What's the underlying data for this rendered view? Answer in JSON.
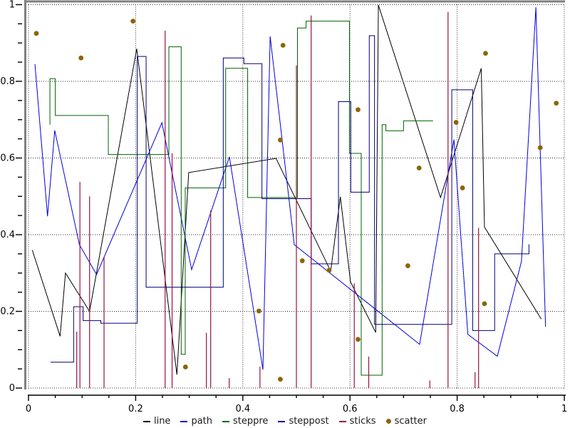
{
  "chart_data": {
    "type": "line",
    "title": "",
    "xlabel": "",
    "ylabel": "",
    "xlim": [
      0,
      1
    ],
    "ylim": [
      0,
      1
    ],
    "grid": "dotted-at-major-ticks",
    "x_ticks": [
      0,
      0.2,
      0.4,
      0.6,
      0.8,
      1
    ],
    "y_ticks": [
      0,
      0.2,
      0.4,
      0.6,
      0.8,
      1
    ],
    "x_tick_labels": [
      "0",
      "0.2",
      "0.4",
      "0.6",
      "0.8",
      "1"
    ],
    "y_tick_labels": [
      "0",
      "0.2",
      "0.4",
      "0.6",
      "0.8",
      "1"
    ],
    "minor_tick_step": 0.05,
    "legend_position": "bottom-center",
    "frame_color": "#808080",
    "grid_color": "#2b2b2b",
    "series": [
      {
        "name": "line",
        "type": "line",
        "color": "#000000",
        "points": [
          [
            0.007,
            0.36
          ],
          [
            0.059,
            0.135
          ],
          [
            0.069,
            0.3
          ],
          [
            0.114,
            0.2
          ],
          [
            0.202,
            0.885
          ],
          [
            0.277,
            0.035
          ],
          [
            0.299,
            0.562
          ],
          [
            0.462,
            0.599
          ],
          [
            0.564,
            0.305
          ],
          [
            0.582,
            0.499
          ],
          [
            0.601,
            0.277
          ],
          [
            0.648,
            0.145
          ],
          [
            0.653,
            0.999
          ],
          [
            0.769,
            0.497
          ],
          [
            0.845,
            0.834
          ],
          [
            0.851,
            0.42
          ],
          [
            0.957,
            0.18
          ]
        ]
      },
      {
        "name": "path",
        "type": "line",
        "color": "#0000e0",
        "points": [
          [
            0.012,
            0.845
          ],
          [
            0.0355,
            0.448
          ],
          [
            0.049,
            0.672
          ],
          [
            0.095,
            0.374
          ],
          [
            0.127,
            0.296
          ],
          [
            0.249,
            0.692
          ],
          [
            0.3045,
            0.309
          ],
          [
            0.375,
            0.603
          ],
          [
            0.4375,
            0.048
          ],
          [
            0.451,
            0.917
          ],
          [
            0.496,
            0.374
          ],
          [
            0.73,
            0.114
          ],
          [
            0.794,
            0.648
          ],
          [
            0.82,
            0.14
          ],
          [
            0.875,
            0.083
          ],
          [
            0.92,
            0.33
          ],
          [
            0.947,
            0.993
          ],
          [
            0.965,
            0.16
          ]
        ]
      },
      {
        "name": "steppre",
        "type": "step-pre",
        "color": "#006400",
        "points": [
          [
            0.04,
            0.687
          ],
          [
            0.05,
            0.807
          ],
          [
            0.149,
            0.711
          ],
          [
            0.262,
            0.609
          ],
          [
            0.285,
            0.89
          ],
          [
            0.2925,
            0.088
          ],
          [
            0.368,
            0.522
          ],
          [
            0.409,
            0.834
          ],
          [
            0.502,
            0.497
          ],
          [
            0.518,
            0.939
          ],
          [
            0.599,
            0.957
          ],
          [
            0.621,
            0.612
          ],
          [
            0.66,
            0.0335
          ],
          [
            0.667,
            0.687
          ],
          [
            0.7,
            0.671
          ],
          [
            0.755,
            0.697
          ]
        ]
      },
      {
        "name": "steppost",
        "type": "step-post",
        "color": "#000080",
        "points": [
          [
            0.041,
            0.0675
          ],
          [
            0.0842,
            0.212
          ],
          [
            0.102,
            0.176
          ],
          [
            0.135,
            0.169
          ],
          [
            0.203,
            0.865
          ],
          [
            0.2195,
            0.263
          ],
          [
            0.3635,
            0.861
          ],
          [
            0.402,
            0.846
          ],
          [
            0.4357,
            0.494
          ],
          [
            0.5275,
            0.324
          ],
          [
            0.5785,
            0.747
          ],
          [
            0.6015,
            0.511
          ],
          [
            0.636,
            0.919
          ],
          [
            0.6458,
            0.166
          ],
          [
            0.79,
            0.778
          ],
          [
            0.829,
            0.15
          ],
          [
            0.87,
            0.35
          ],
          [
            0.934,
            0.375
          ]
        ]
      },
      {
        "name": "sticks",
        "type": "sticks",
        "color": "#991144",
        "points": [
          [
            0.09,
            0.147
          ],
          [
            0.096,
            0.538
          ],
          [
            0.114,
            0.5
          ],
          [
            0.141,
            0.342
          ],
          [
            0.255,
            0.932
          ],
          [
            0.268,
            0.612
          ],
          [
            0.332,
            0.144
          ],
          [
            0.34,
            0.463
          ],
          [
            0.3746,
            0.026
          ],
          [
            0.432,
            0.056
          ],
          [
            0.5,
            0.8415
          ],
          [
            0.5275,
            0.9717
          ],
          [
            0.608,
            0.273
          ],
          [
            0.635,
            0.082
          ],
          [
            0.749,
            0.02
          ],
          [
            0.783,
            0.981
          ],
          [
            0.8334,
            0.0415
          ],
          [
            0.84,
            0.418
          ]
        ]
      },
      {
        "name": "scatter",
        "type": "scatter",
        "color": "#8b6508",
        "points": [
          [
            0.0146,
            0.925
          ],
          [
            0.098,
            0.861
          ],
          [
            0.195,
            0.957
          ],
          [
            0.293,
            0.055
          ],
          [
            0.43,
            0.201
          ],
          [
            0.47,
            0.023
          ],
          [
            0.47,
            0.647
          ],
          [
            0.475,
            0.894
          ],
          [
            0.511,
            0.332
          ],
          [
            0.561,
            0.307
          ],
          [
            0.615,
            0.127
          ],
          [
            0.615,
            0.726
          ],
          [
            0.708,
            0.319
          ],
          [
            0.729,
            0.574
          ],
          [
            0.798,
            0.693
          ],
          [
            0.81,
            0.522
          ],
          [
            0.851,
            0.22
          ],
          [
            0.853,
            0.873
          ],
          [
            0.955,
            0.627
          ],
          [
            0.985,
            0.743
          ]
        ]
      }
    ],
    "legend": {
      "entries": [
        {
          "label": "line",
          "marker": "dash",
          "color": "#000000"
        },
        {
          "label": "path",
          "marker": "dash",
          "color": "#0000e0"
        },
        {
          "label": "steppre",
          "marker": "dash",
          "color": "#006400"
        },
        {
          "label": "steppost",
          "marker": "dash",
          "color": "#000080"
        },
        {
          "label": "sticks",
          "marker": "dash",
          "color": "#991144"
        },
        {
          "label": "scatter",
          "marker": "dot",
          "color": "#8b6508"
        }
      ]
    }
  }
}
